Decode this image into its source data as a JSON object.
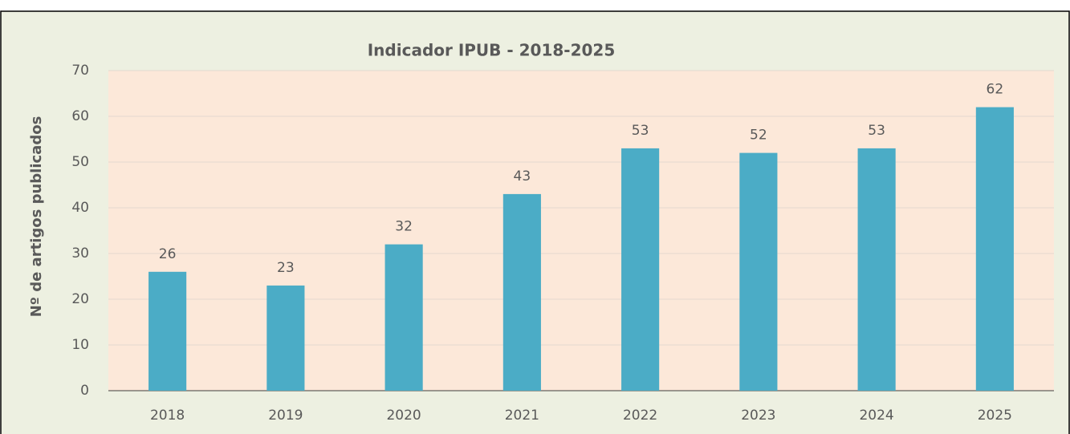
{
  "chart_data": {
    "type": "bar",
    "title": "Indicador IPUB - 2018-2025",
    "y_label": "Nº de artigos publicados",
    "categories": [
      "2018",
      "2019",
      "2020",
      "2021",
      "2022",
      "2023",
      "2024",
      "2025"
    ],
    "values": [
      26,
      23,
      32,
      43,
      53,
      52,
      53,
      62
    ],
    "color": "#4bacc6",
    "ylim": [
      0,
      70
    ],
    "yticks": [
      0,
      10,
      20,
      30,
      40,
      50,
      60,
      70
    ],
    "grid": true
  }
}
